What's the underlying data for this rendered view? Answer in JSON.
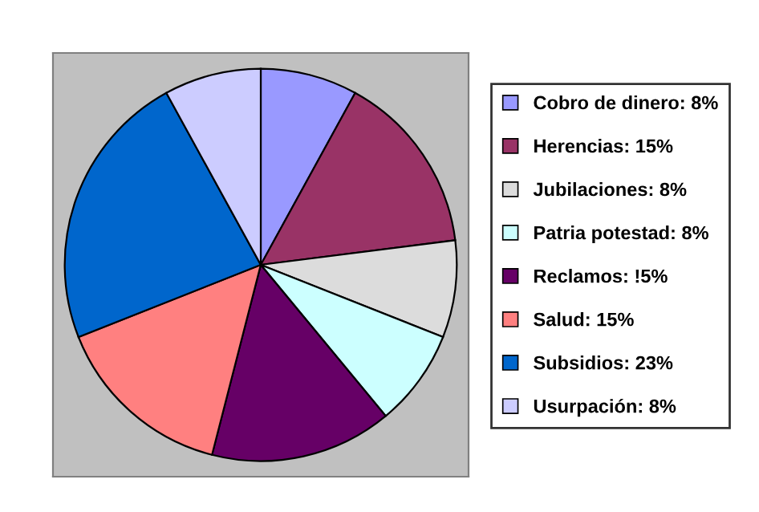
{
  "chart_data": {
    "type": "pie",
    "categories": [
      "Cobro de dinero: 8%",
      "Herencias: 15%",
      "Jubilaciones: 8%",
      "Patria potestad: 8%",
      "Reclamos: !5%",
      "Salud: 15%",
      "Subsidios: 23%",
      "Usurpación: 8%"
    ],
    "values": [
      8,
      15,
      8,
      8,
      15,
      15,
      23,
      8
    ],
    "colors": [
      "#9999ff",
      "#993366",
      "#dcdcdc",
      "#ccffff",
      "#660066",
      "#ff8080",
      "#0066cc",
      "#ccccff"
    ],
    "legend": "right"
  }
}
